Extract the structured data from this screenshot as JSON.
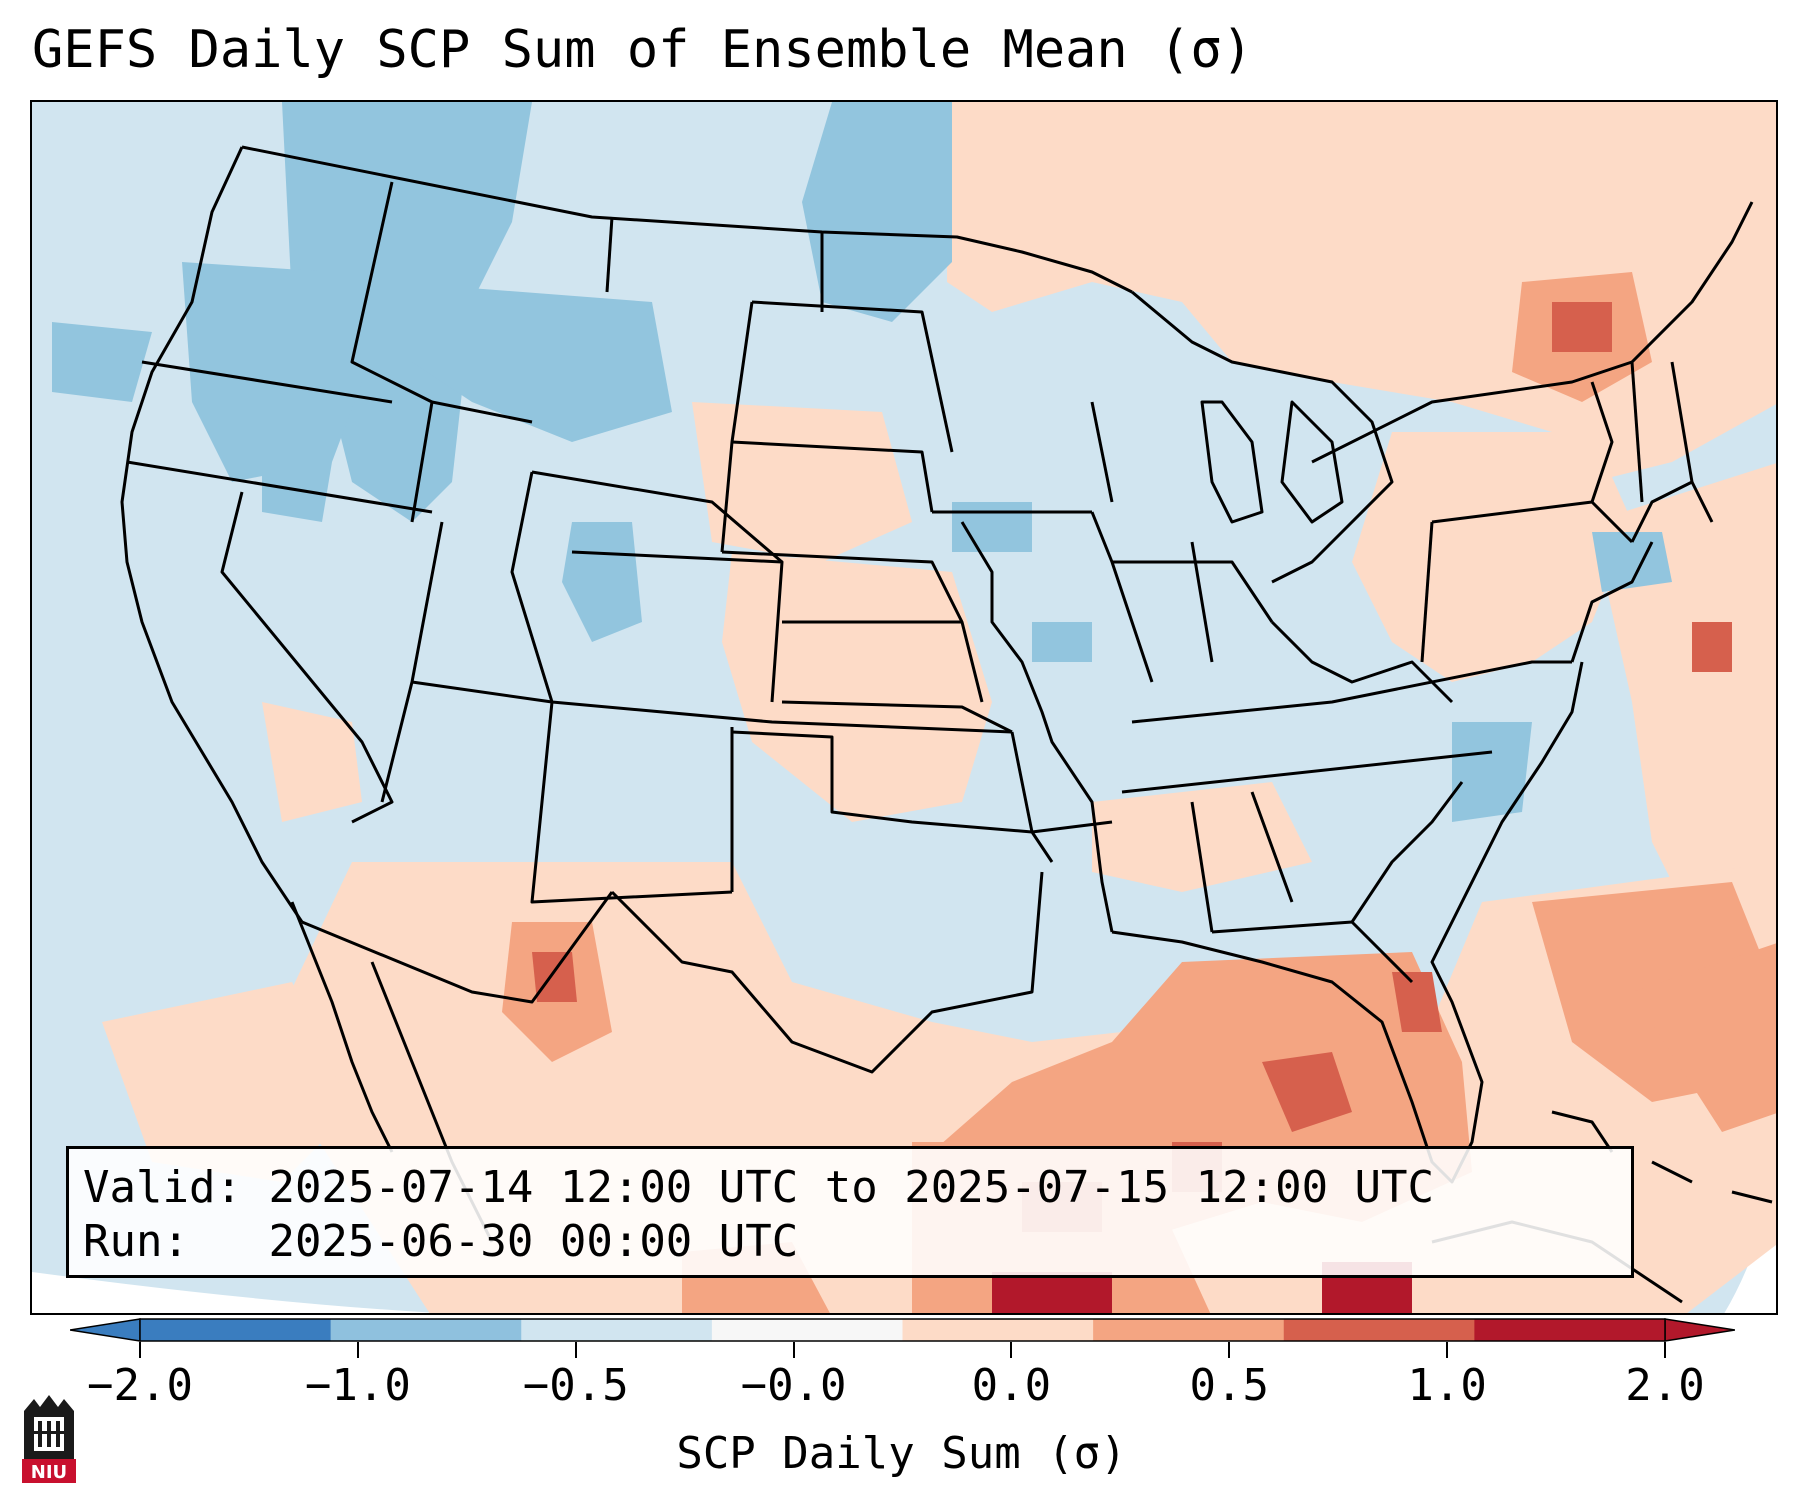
{
  "title": "GEFS Daily SCP Sum of Ensemble Mean (σ)",
  "info": {
    "valid_label": "Valid:",
    "valid_value": "2025-07-14 12:00 UTC to 2025-07-15 12:00 UTC",
    "run_label": "Run:",
    "run_value": "2025-06-30 00:00 UTC"
  },
  "colorbar": {
    "title": "SCP Daily Sum (σ)",
    "tick_labels": [
      "−2.0",
      "−1.0",
      "−0.5",
      "−0.0",
      "0.0",
      "0.5",
      "1.0",
      "2.0"
    ],
    "colors": [
      "#3a7dbf",
      "#8fc1de",
      "#d1e5f0",
      "#f7f7f7",
      "#fddbc7",
      "#f4a582",
      "#d6604d",
      "#b2182b"
    ],
    "extend": "both"
  },
  "logo": {
    "text": "NIU",
    "colors": {
      "red": "#c8102e",
      "black": "#1a1a1a"
    }
  },
  "map": {
    "ocean_color": "#d1e5f0",
    "land_color": "#d1e5f0",
    "border_color": "#000000",
    "region": "Continental United States"
  }
}
